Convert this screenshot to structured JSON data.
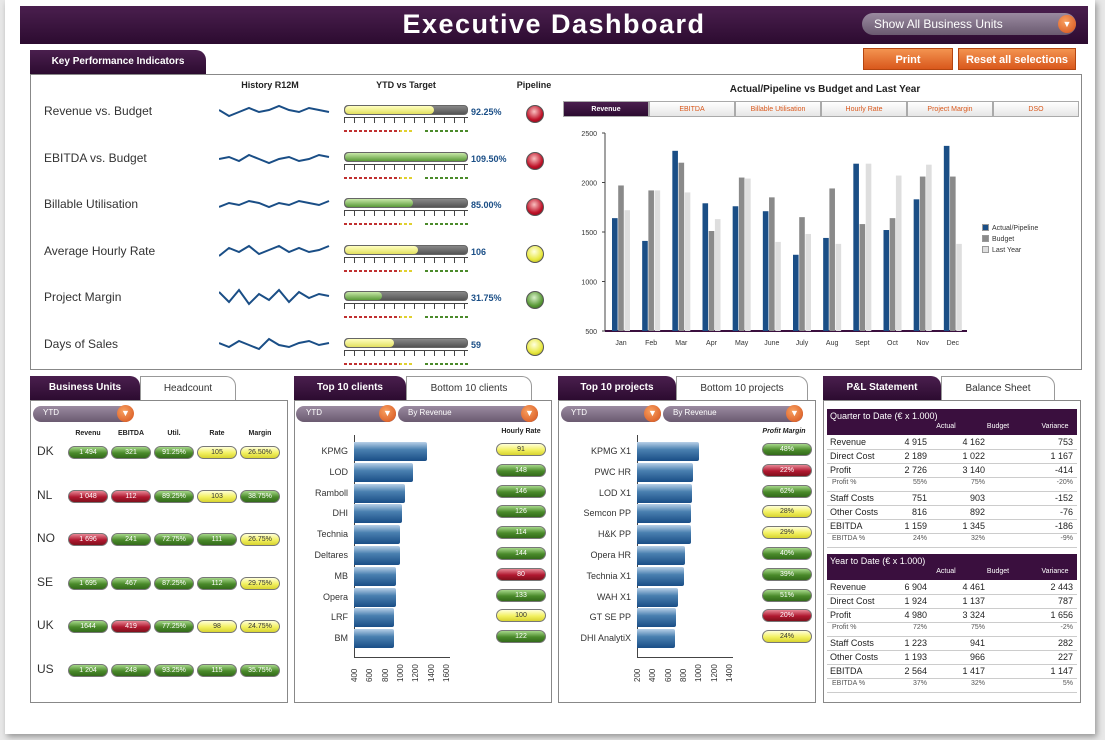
{
  "header": {
    "title": "Executive Dashboard",
    "bu_select": "Show All Business Units"
  },
  "buttons": {
    "print": "Print",
    "reset": "Reset all selections"
  },
  "kpi": {
    "tab": "Key Performance Indicators",
    "col_history": "History R12M",
    "col_ytd": "YTD vs Target",
    "col_pipeline": "Pipeline",
    "rows": [
      {
        "name": "Revenue vs. Budget",
        "value": "92.25%",
        "fill_pct": 73,
        "bar": "y",
        "pipeline": "red"
      },
      {
        "name": "EBITDA vs. Budget",
        "value": "109.50%",
        "fill_pct": 100,
        "bar": "g",
        "pipeline": "red"
      },
      {
        "name": "Billable Utilisation",
        "value": "85.00%",
        "fill_pct": 56,
        "bar": "g",
        "pipeline": "red"
      },
      {
        "name": "Average Hourly Rate",
        "value": "106",
        "fill_pct": 60,
        "bar": "y",
        "pipeline": "yellow"
      },
      {
        "name": "Project Margin",
        "value": "31.75%",
        "fill_pct": 30,
        "bar": "g",
        "pipeline": "green"
      },
      {
        "name": "Days of Sales",
        "value": "59",
        "fill_pct": 40,
        "bar": "y",
        "pipeline": "yellow"
      }
    ]
  },
  "chart_tabs": [
    "Revenue",
    "EBITDA",
    "Billable Utilisation",
    "Hourly Rate",
    "Project Margin",
    "DSO"
  ],
  "chart_data": {
    "type": "bar",
    "title": "Actual/Pipeline vs Budget and Last Year",
    "categories": [
      "Jan",
      "Feb",
      "Mar",
      "Apr",
      "May",
      "June",
      "July",
      "Aug",
      "Sept",
      "Oct",
      "Nov",
      "Dec"
    ],
    "series": [
      {
        "name": "Actual/Pipeline",
        "color": "#1a4e86",
        "values": [
          1640,
          1410,
          2320,
          1790,
          1760,
          1710,
          1270,
          1440,
          2190,
          1520,
          1830,
          2370
        ]
      },
      {
        "name": "Budget",
        "color": "#8a8a8a",
        "values": [
          1970,
          1920,
          2200,
          1510,
          2050,
          1850,
          1650,
          1940,
          1580,
          1640,
          2060,
          2060
        ]
      },
      {
        "name": "Last Year",
        "color": "#dedede",
        "values": [
          1720,
          1920,
          1900,
          1630,
          2040,
          1400,
          1480,
          1380,
          2190,
          2070,
          2180,
          1380
        ]
      }
    ],
    "ylim": [
      500,
      2500
    ],
    "yticks": [
      "2500",
      "2000",
      "1500",
      "1000",
      "500"
    ],
    "legend": "right"
  },
  "bu": {
    "tabs": [
      "Business Units",
      "Headcount"
    ],
    "filter": "YTD",
    "cols": [
      "Revenu",
      "EBITDA",
      "Util.",
      "Rate",
      "Margin"
    ],
    "rows": [
      {
        "unit": "DK",
        "cells": [
          [
            "1 494",
            "g"
          ],
          [
            "321",
            "g"
          ],
          [
            "91.25%",
            "g"
          ],
          [
            "105",
            "y"
          ],
          [
            "26.50%",
            "y"
          ]
        ]
      },
      {
        "unit": "NL",
        "cells": [
          [
            "1 048",
            "r"
          ],
          [
            "112",
            "r"
          ],
          [
            "89.25%",
            "g"
          ],
          [
            "103",
            "y"
          ],
          [
            "38.75%",
            "g"
          ]
        ]
      },
      {
        "unit": "NO",
        "cells": [
          [
            "1 696",
            "r"
          ],
          [
            "241",
            "g"
          ],
          [
            "72.75%",
            "g"
          ],
          [
            "111",
            "g"
          ],
          [
            "26.75%",
            "y"
          ]
        ]
      },
      {
        "unit": "SE",
        "cells": [
          [
            "1 695",
            "g"
          ],
          [
            "467",
            "g"
          ],
          [
            "87.25%",
            "g"
          ],
          [
            "112",
            "g"
          ],
          [
            "29.75%",
            "y"
          ]
        ]
      },
      {
        "unit": "UK",
        "cells": [
          [
            "1644",
            "g"
          ],
          [
            "419",
            "r"
          ],
          [
            "77.25%",
            "g"
          ],
          [
            "98",
            "y"
          ],
          [
            "24.75%",
            "y"
          ]
        ]
      },
      {
        "unit": "US",
        "cells": [
          [
            "1 204",
            "g"
          ],
          [
            "248",
            "g"
          ],
          [
            "93.25%",
            "g"
          ],
          [
            "115",
            "g"
          ],
          [
            "35.75%",
            "g"
          ]
        ]
      }
    ]
  },
  "clients": {
    "tabs": [
      "Top 10 clients",
      "Bottom 10 clients"
    ],
    "filter": "YTD",
    "sort": "By Revenue",
    "metric_label": "Hourly Rate",
    "axis": [
      "400",
      "600",
      "800",
      "1000",
      "1200",
      "1400",
      "1600"
    ],
    "rows": [
      {
        "name": "KPMG",
        "value": 1350,
        "pill": "91",
        "pc": "y"
      },
      {
        "name": "LOD",
        "value": 1170,
        "pill": "148",
        "pc": "g"
      },
      {
        "name": "Ramboll",
        "value": 1070,
        "pill": "146",
        "pc": "g"
      },
      {
        "name": "DHI",
        "value": 1030,
        "pill": "126",
        "pc": "g"
      },
      {
        "name": "Technia",
        "value": 1000,
        "pill": "114",
        "pc": "g"
      },
      {
        "name": "Deltares",
        "value": 1000,
        "pill": "144",
        "pc": "g"
      },
      {
        "name": "MB",
        "value": 950,
        "pill": "80",
        "pc": "r"
      },
      {
        "name": "Opera",
        "value": 950,
        "pill": "133",
        "pc": "g"
      },
      {
        "name": "LRF",
        "value": 920,
        "pill": "100",
        "pc": "y"
      },
      {
        "name": "BM",
        "value": 920,
        "pill": "122",
        "pc": "g"
      }
    ]
  },
  "projects": {
    "tabs": [
      "Top 10 projects",
      "Bottom 10 projects"
    ],
    "filter": "YTD",
    "sort": "By Revenue",
    "metric_label": "Profit Margin",
    "axis": [
      "200",
      "400",
      "600",
      "800",
      "1000",
      "1200",
      "1400"
    ],
    "rows": [
      {
        "name": "KPMG X1",
        "value": 1010,
        "pill": "48%",
        "pc": "g"
      },
      {
        "name": "PWC HR",
        "value": 930,
        "pill": "22%",
        "pc": "r"
      },
      {
        "name": "LOD X1",
        "value": 920,
        "pill": "62%",
        "pc": "g"
      },
      {
        "name": "Semcon PP",
        "value": 910,
        "pill": "28%",
        "pc": "y"
      },
      {
        "name": "H&K PP",
        "value": 900,
        "pill": "29%",
        "pc": "y"
      },
      {
        "name": "Opera HR",
        "value": 830,
        "pill": "40%",
        "pc": "g"
      },
      {
        "name": "Technia X1",
        "value": 810,
        "pill": "39%",
        "pc": "g"
      },
      {
        "name": "WAH X1",
        "value": 730,
        "pill": "51%",
        "pc": "g"
      },
      {
        "name": "GT SE PP",
        "value": 710,
        "pill": "20%",
        "pc": "r"
      },
      {
        "name": "DHI AnalytiX",
        "value": 700,
        "pill": "24%",
        "pc": "y"
      }
    ]
  },
  "pl": {
    "tabs": [
      "P&L Statement",
      "Balance Sheet"
    ],
    "cols": [
      "Actual",
      "Budget",
      "Variance"
    ],
    "qtd_title": "Quarter to Date (€ x 1.000)",
    "qtd": [
      {
        "label": "Revenue",
        "a": "4 915",
        "b": "4 162",
        "v": "753"
      },
      {
        "label": "Direct Cost",
        "a": "2 189",
        "b": "1 022",
        "v": "1 167"
      },
      {
        "label": "Profit",
        "a": "2 726",
        "b": "3 140",
        "v": "-414"
      },
      {
        "label": "Profit %",
        "a": "55%",
        "b": "75%",
        "v": "-20%",
        "sub": true
      },
      {
        "label": "Staff Costs",
        "a": "751",
        "b": "903",
        "v": "-152"
      },
      {
        "label": "Other Costs",
        "a": "816",
        "b": "892",
        "v": "-76"
      },
      {
        "label": "EBITDA",
        "a": "1 159",
        "b": "1 345",
        "v": "-186"
      },
      {
        "label": "EBITDA %",
        "a": "24%",
        "b": "32%",
        "v": "-9%",
        "sub": true
      }
    ],
    "ytd_title": "Year to Date (€ x 1.000)",
    "ytd": [
      {
        "label": "Revenue",
        "a": "6 904",
        "b": "4 461",
        "v": "2 443"
      },
      {
        "label": "Direct Cost",
        "a": "1 924",
        "b": "1 137",
        "v": "787"
      },
      {
        "label": "Profit",
        "a": "4 980",
        "b": "3 324",
        "v": "1 656"
      },
      {
        "label": "Profit %",
        "a": "72%",
        "b": "75%",
        "v": "-2%",
        "sub": true
      },
      {
        "label": "Staff Costs",
        "a": "1 223",
        "b": "941",
        "v": "282"
      },
      {
        "label": "Other Costs",
        "a": "1 193",
        "b": "966",
        "v": "227"
      },
      {
        "label": "EBITDA",
        "a": "2 564",
        "b": "1 417",
        "v": "1 147"
      },
      {
        "label": "EBITDA %",
        "a": "37%",
        "b": "32%",
        "v": "5%",
        "sub": true
      }
    ]
  }
}
